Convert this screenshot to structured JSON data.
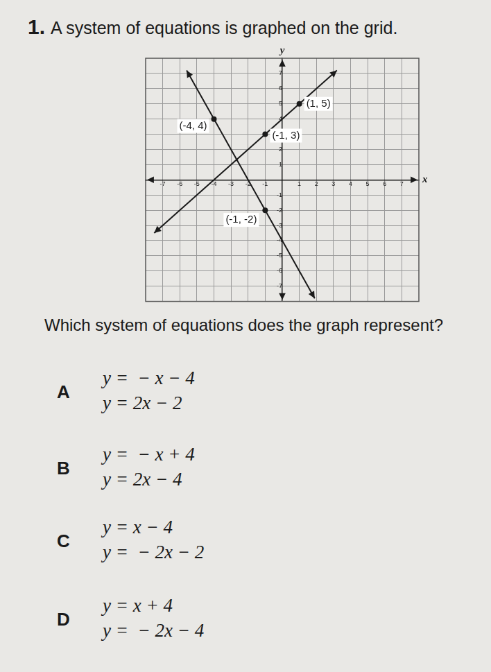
{
  "question_number": "1.",
  "prompt": "A system of equations is graphed on the grid.",
  "chart_data": {
    "type": "line",
    "xlabel": "x",
    "ylabel": "y",
    "xlim": [
      -8,
      8
    ],
    "ylim": [
      -8,
      8
    ],
    "xticks": [
      -7,
      -6,
      -5,
      -4,
      -3,
      -2,
      -1,
      1,
      2,
      3,
      4,
      5,
      6,
      7
    ],
    "yticks": [
      -7,
      -6,
      -5,
      -4,
      -3,
      -2,
      -1,
      1,
      2,
      3,
      4,
      5,
      6,
      7
    ],
    "grid": true,
    "color": "#1a1a1a",
    "series": [
      {
        "x": [
          -7.5,
          3.2
        ],
        "values": [
          -3.5,
          7.2
        ],
        "marker": "arrow",
        "line_style": "solid"
      },
      {
        "x": [
          -5.6,
          1.9
        ],
        "values": [
          7.2,
          -7.8
        ],
        "marker": "arrow",
        "line_style": "solid"
      }
    ],
    "points": [
      {
        "x": -4,
        "y": 4,
        "label": "(-4, 4)"
      },
      {
        "x": 1,
        "y": 5,
        "label": "(1, 5)"
      },
      {
        "x": -1,
        "y": 3,
        "label": "(-1, 3)"
      },
      {
        "x": -1,
        "y": -2,
        "label": "(-1, -2)"
      }
    ]
  },
  "question": "Which system of equations does the graph represent?",
  "choices": [
    {
      "letter": "A",
      "equations": [
        "y =  − x − 4",
        "y = 2x − 2"
      ]
    },
    {
      "letter": "B",
      "equations": [
        "y =  − x + 4",
        "y = 2x − 4"
      ]
    },
    {
      "letter": "C",
      "equations": [
        "y = x − 4",
        "y =  − 2x − 2"
      ]
    },
    {
      "letter": "D",
      "equations": [
        "y = x + 4",
        "y =  − 2x − 4"
      ]
    }
  ]
}
